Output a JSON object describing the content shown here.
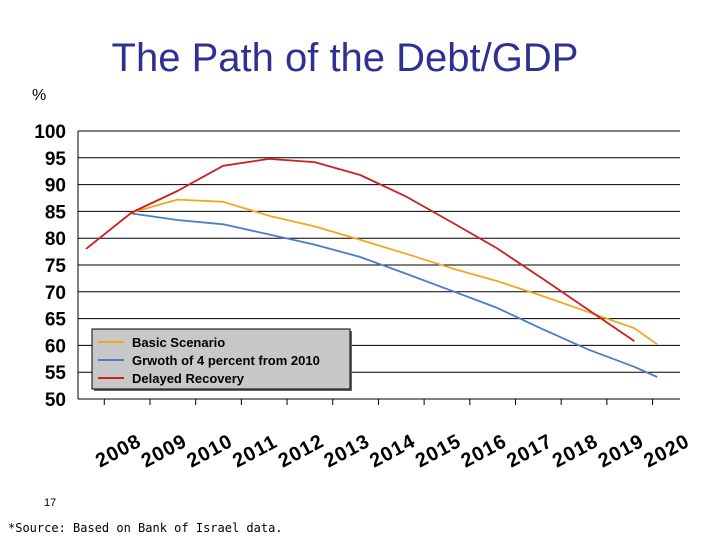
{
  "slide": {
    "title": "The Path of the Debt/GDP",
    "unit_label": "%",
    "slide_number": "17",
    "source_note": "*Source: Based on Bank of Israel data."
  },
  "chart_data": {
    "type": "line",
    "title": "The Path of the Debt/GDP",
    "xlabel": "",
    "ylabel": "%",
    "ylim": [
      50,
      100
    ],
    "yticks": [
      100,
      95,
      90,
      85,
      80,
      75,
      70,
      65,
      60,
      55,
      50
    ],
    "categories": [
      "2008",
      "2009",
      "2010",
      "2011",
      "2012",
      "2013",
      "2014",
      "2015",
      "2016",
      "2017",
      "2018",
      "2019",
      "2020"
    ],
    "grid": true,
    "legend_position": "bottom-left",
    "series": [
      {
        "name": "Basic Scenario",
        "color": "#f0a81c",
        "points": [
          [
            2009,
            84.8
          ],
          [
            2010,
            87.2
          ],
          [
            2011,
            86.8
          ],
          [
            2012,
            84.2
          ],
          [
            2013,
            82.2
          ],
          [
            2014,
            79.7
          ],
          [
            2015,
            77.1
          ],
          [
            2016,
            74.4
          ],
          [
            2017,
            72.0
          ],
          [
            2018,
            69.2
          ],
          [
            2019,
            66.2
          ],
          [
            2020,
            63.2
          ],
          [
            2020.5,
            60.2
          ]
        ]
      },
      {
        "name": "Grwoth of 4 percent from 2010",
        "color": "#4a7ec4",
        "points": [
          [
            2009,
            84.6
          ],
          [
            2010,
            83.4
          ],
          [
            2011,
            82.6
          ],
          [
            2012,
            80.7
          ],
          [
            2013,
            78.8
          ],
          [
            2014,
            76.5
          ],
          [
            2015,
            73.4
          ],
          [
            2016,
            70.2
          ],
          [
            2017,
            67.0
          ],
          [
            2018,
            63.0
          ],
          [
            2019,
            59.2
          ],
          [
            2020,
            56.0
          ],
          [
            2020.5,
            54.1
          ]
        ]
      },
      {
        "name": "Delayed Recovery",
        "color": "#cc1f1f",
        "points": [
          [
            2008,
            78.0
          ],
          [
            2009,
            84.8
          ],
          [
            2010,
            88.8
          ],
          [
            2011,
            93.5
          ],
          [
            2012,
            94.8
          ],
          [
            2013,
            94.2
          ],
          [
            2014,
            91.8
          ],
          [
            2015,
            87.8
          ],
          [
            2016,
            83.0
          ],
          [
            2017,
            78.1
          ],
          [
            2018,
            72.4
          ],
          [
            2019,
            66.6
          ],
          [
            2020,
            60.8
          ]
        ]
      }
    ]
  }
}
